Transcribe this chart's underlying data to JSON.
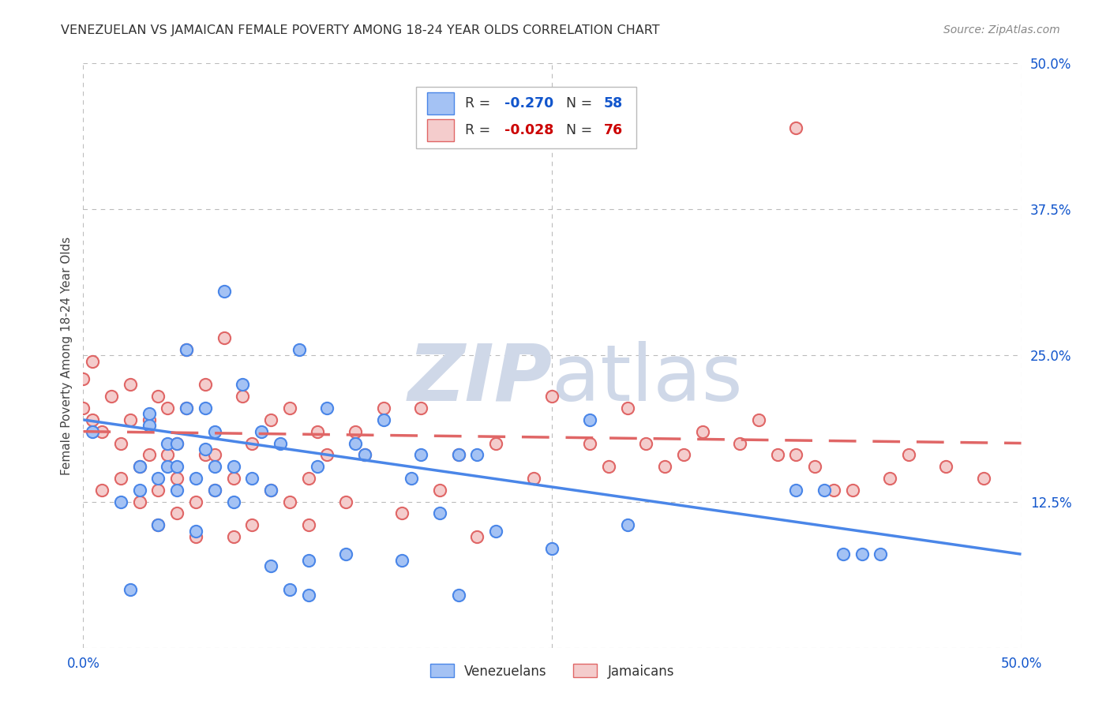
{
  "title": "VENEZUELAN VS JAMAICAN FEMALE POVERTY AMONG 18-24 YEAR OLDS CORRELATION CHART",
  "source": "Source: ZipAtlas.com",
  "ylabel": "Female Poverty Among 18-24 Year Olds",
  "xlim": [
    0,
    0.5
  ],
  "ylim": [
    0,
    0.5
  ],
  "legend_R1": "-0.270",
  "legend_N1": "58",
  "legend_R2": "-0.028",
  "legend_N2": "76",
  "color_blue": "#a4c2f4",
  "color_pink": "#f4cccc",
  "color_blue_line": "#4a86e8",
  "color_pink_line": "#e06666",
  "color_blue_text": "#1155cc",
  "color_pink_text": "#cc0000",
  "watermark_color": "#cfd8e8",
  "background_color": "#ffffff",
  "grid_color": "#bbbbbb",
  "venezuelan_x": [
    0.005,
    0.02,
    0.025,
    0.03,
    0.03,
    0.035,
    0.035,
    0.04,
    0.04,
    0.045,
    0.045,
    0.05,
    0.05,
    0.05,
    0.055,
    0.055,
    0.06,
    0.06,
    0.065,
    0.065,
    0.07,
    0.07,
    0.07,
    0.075,
    0.08,
    0.08,
    0.085,
    0.09,
    0.095,
    0.1,
    0.1,
    0.105,
    0.11,
    0.115,
    0.12,
    0.12,
    0.125,
    0.13,
    0.14,
    0.145,
    0.15,
    0.16,
    0.17,
    0.175,
    0.18,
    0.19,
    0.2,
    0.2,
    0.21,
    0.22,
    0.25,
    0.27,
    0.29,
    0.38,
    0.395,
    0.405,
    0.415,
    0.425
  ],
  "venezuelan_y": [
    0.185,
    0.125,
    0.05,
    0.135,
    0.155,
    0.19,
    0.2,
    0.105,
    0.145,
    0.155,
    0.175,
    0.135,
    0.155,
    0.175,
    0.205,
    0.255,
    0.1,
    0.145,
    0.17,
    0.205,
    0.135,
    0.155,
    0.185,
    0.305,
    0.125,
    0.155,
    0.225,
    0.145,
    0.185,
    0.07,
    0.135,
    0.175,
    0.05,
    0.255,
    0.045,
    0.075,
    0.155,
    0.205,
    0.08,
    0.175,
    0.165,
    0.195,
    0.075,
    0.145,
    0.165,
    0.115,
    0.045,
    0.165,
    0.165,
    0.1,
    0.085,
    0.195,
    0.105,
    0.135,
    0.135,
    0.08,
    0.08,
    0.08
  ],
  "jamaican_x": [
    0.0,
    0.0,
    0.005,
    0.005,
    0.01,
    0.01,
    0.015,
    0.02,
    0.02,
    0.025,
    0.025,
    0.03,
    0.03,
    0.035,
    0.035,
    0.04,
    0.04,
    0.04,
    0.045,
    0.045,
    0.05,
    0.05,
    0.05,
    0.055,
    0.055,
    0.06,
    0.06,
    0.065,
    0.065,
    0.07,
    0.07,
    0.075,
    0.08,
    0.08,
    0.085,
    0.09,
    0.09,
    0.1,
    0.1,
    0.11,
    0.11,
    0.12,
    0.12,
    0.125,
    0.13,
    0.14,
    0.145,
    0.15,
    0.16,
    0.17,
    0.18,
    0.19,
    0.2,
    0.21,
    0.22,
    0.24,
    0.25,
    0.27,
    0.28,
    0.29,
    0.3,
    0.31,
    0.32,
    0.33,
    0.35,
    0.36,
    0.37,
    0.38,
    0.39,
    0.4,
    0.41,
    0.43,
    0.44,
    0.46,
    0.48,
    0.38
  ],
  "jamaican_y": [
    0.205,
    0.23,
    0.195,
    0.245,
    0.135,
    0.185,
    0.215,
    0.145,
    0.175,
    0.195,
    0.225,
    0.125,
    0.155,
    0.165,
    0.195,
    0.105,
    0.135,
    0.215,
    0.165,
    0.205,
    0.115,
    0.145,
    0.175,
    0.205,
    0.255,
    0.095,
    0.125,
    0.165,
    0.225,
    0.135,
    0.165,
    0.265,
    0.095,
    0.145,
    0.215,
    0.105,
    0.175,
    0.135,
    0.195,
    0.125,
    0.205,
    0.105,
    0.145,
    0.185,
    0.165,
    0.125,
    0.185,
    0.165,
    0.205,
    0.115,
    0.205,
    0.135,
    0.165,
    0.095,
    0.175,
    0.145,
    0.215,
    0.175,
    0.155,
    0.205,
    0.175,
    0.155,
    0.165,
    0.185,
    0.175,
    0.195,
    0.165,
    0.445,
    0.155,
    0.135,
    0.135,
    0.145,
    0.165,
    0.155,
    0.145,
    0.165
  ]
}
